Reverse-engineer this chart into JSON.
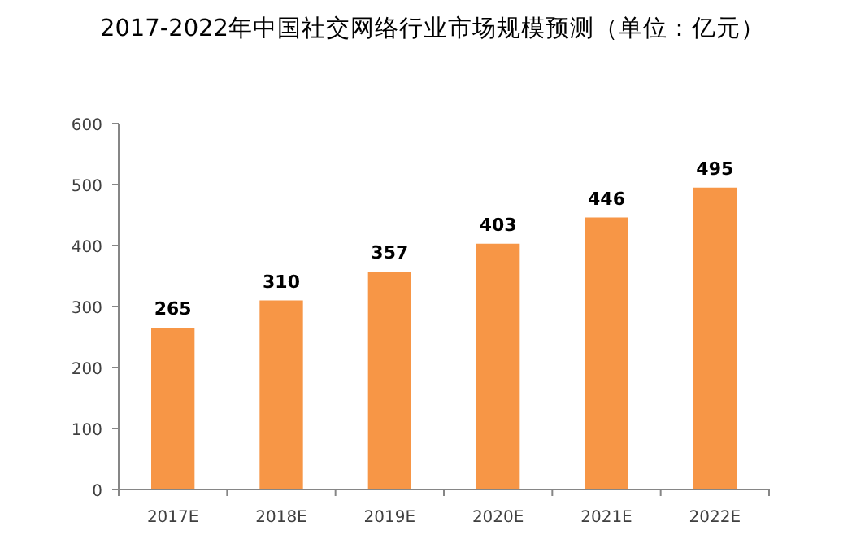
{
  "chart_data": {
    "type": "bar",
    "title": "2017-2022年中国社交网络行业市场规模预测（单位：亿元）",
    "categories": [
      "2017E",
      "2018E",
      "2019E",
      "2020E",
      "2021E",
      "2022E"
    ],
    "values": [
      265,
      310,
      357,
      403,
      446,
      495
    ],
    "color": "#f79646",
    "ylim": [
      0,
      600
    ],
    "yticks": [
      0,
      100,
      200,
      300,
      400,
      500,
      600
    ],
    "data_labels": true,
    "grid": false
  }
}
